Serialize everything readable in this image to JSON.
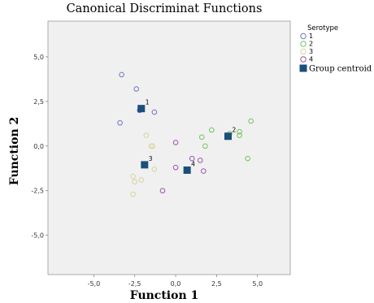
{
  "chart_data": {
    "type": "scatter",
    "title": "Canonical Discriminat Functions",
    "xlabel": "Function 1",
    "ylabel": "Function 2",
    "xlim": [
      -7.8,
      7.0
    ],
    "ylim": [
      -7.2,
      7.0
    ],
    "xticks": [
      -5.0,
      -2.5,
      0.0,
      2.5,
      5.0
    ],
    "yticks": [
      -5.0,
      -2.5,
      0.0,
      2.5,
      5.0
    ],
    "xtick_labels": [
      "-5,0",
      "-2,5",
      "0,0",
      "2,5",
      "5,0"
    ],
    "ytick_labels": [
      "-5,0",
      "-2,5",
      "0,0",
      "2,5",
      "5,0"
    ],
    "grid": false,
    "legend_title": "Serotype",
    "legend_position": "right",
    "series": [
      {
        "name": "1",
        "color": "#6f76c6",
        "marker": "open-circle",
        "x": [
          -3.3,
          -2.4,
          -1.3,
          -3.4,
          -2.2
        ],
        "y": [
          4.0,
          3.2,
          1.9,
          1.3,
          2.0
        ]
      },
      {
        "name": "2",
        "color": "#73c462",
        "marker": "open-circle",
        "x": [
          2.2,
          1.6,
          1.8,
          3.3,
          3.9,
          3.9,
          4.6,
          4.4
        ],
        "y": [
          0.9,
          0.5,
          0.0,
          0.7,
          0.8,
          0.6,
          1.4,
          -0.7
        ]
      },
      {
        "name": "3",
        "color": "#d8d5a2",
        "marker": "open-circle",
        "x": [
          -1.8,
          -1.5,
          -1.4,
          -1.3,
          -2.6,
          -2.5,
          -2.1,
          -2.6,
          -1.9
        ],
        "y": [
          0.6,
          0.0,
          0.0,
          -1.3,
          -1.7,
          -2.0,
          -1.9,
          -2.7,
          -1.0
        ]
      },
      {
        "name": "4",
        "color": "#9a54b0",
        "marker": "open-circle",
        "x": [
          0.0,
          1.0,
          1.5,
          1.7,
          0.0,
          -0.8
        ],
        "y": [
          0.2,
          -0.7,
          -0.8,
          -1.4,
          -1.2,
          -2.5
        ]
      }
    ],
    "centroids": {
      "name": "Group centroid",
      "color": "#1a4f7a",
      "marker": "filled-square",
      "points": [
        {
          "label": "1",
          "x": -2.1,
          "y": 2.1
        },
        {
          "label": "2",
          "x": 3.2,
          "y": 0.55
        },
        {
          "label": "3",
          "x": -1.9,
          "y": -1.05
        },
        {
          "label": "4",
          "x": 0.7,
          "y": -1.35
        }
      ]
    }
  }
}
